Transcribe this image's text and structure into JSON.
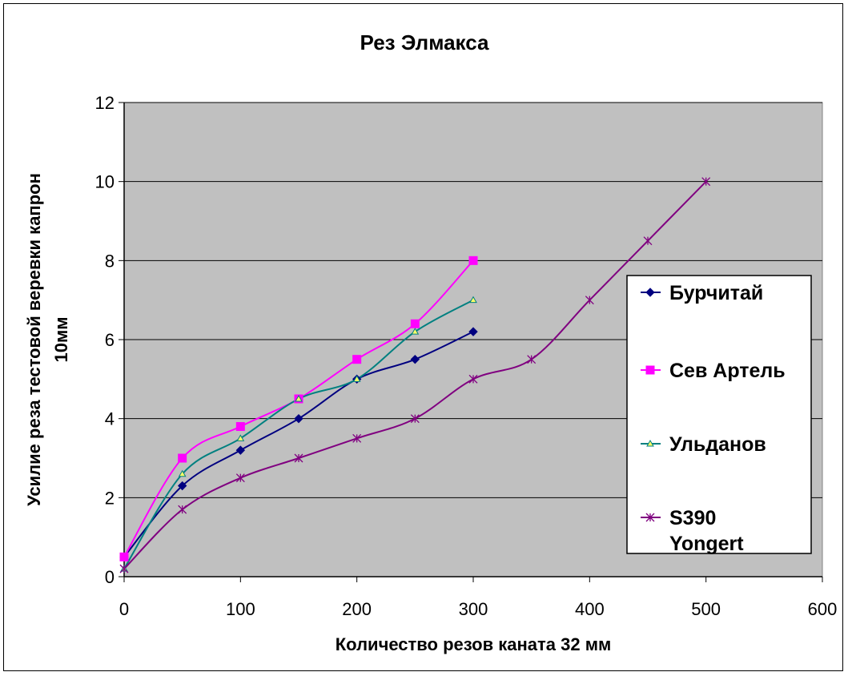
{
  "chart_data": {
    "type": "line",
    "title": "Рез Элмакса",
    "xlabel": "Количество резов каната 32 мм",
    "ylabel_lines": [
      "Усилие реза тестовой веревки капрон",
      "10мм"
    ],
    "xlim": [
      0,
      600
    ],
    "ylim": [
      0,
      12
    ],
    "xticks": [
      0,
      100,
      200,
      300,
      400,
      500,
      600
    ],
    "yticks": [
      0,
      2,
      4,
      6,
      8,
      10,
      12
    ],
    "grid": "horizontal",
    "legend_position": "right",
    "plot_bg": "#c0c0c0",
    "series": [
      {
        "name": "Бурчитай",
        "color": "#000080",
        "marker": "diamond",
        "x": [
          0,
          50,
          100,
          150,
          200,
          250,
          300
        ],
        "y": [
          0.5,
          2.3,
          3.2,
          4.0,
          5.0,
          5.5,
          6.2
        ]
      },
      {
        "name": "Сев Артель",
        "color": "#ff00ff",
        "marker": "square",
        "x": [
          0,
          50,
          100,
          150,
          200,
          250,
          300
        ],
        "y": [
          0.5,
          3.0,
          3.8,
          4.5,
          5.5,
          6.4,
          8.0
        ]
      },
      {
        "name": "Ульданов",
        "color": "#008080",
        "marker": "triangle",
        "x": [
          0,
          50,
          100,
          150,
          200,
          250,
          300
        ],
        "y": [
          0.2,
          2.6,
          3.5,
          4.5,
          5.0,
          6.2,
          7.0
        ]
      },
      {
        "name_lines": [
          "S390",
          "Yongert"
        ],
        "color": "#800080",
        "marker": "star",
        "x": [
          0,
          50,
          100,
          150,
          200,
          250,
          300,
          350,
          400,
          450,
          500
        ],
        "y": [
          0.2,
          1.7,
          2.5,
          3.0,
          3.5,
          4.0,
          5.0,
          5.5,
          7.0,
          8.5,
          10.0
        ]
      }
    ]
  }
}
